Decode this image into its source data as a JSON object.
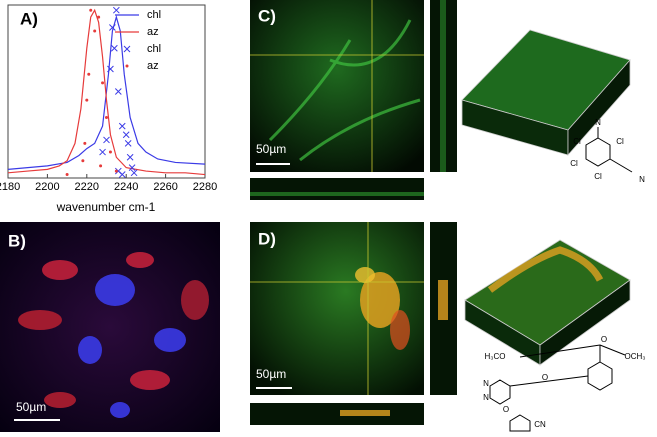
{
  "chart_data": {
    "type": "line",
    "xlabel": "wavenumber cm-1",
    "xlim": [
      2180,
      2280
    ],
    "xticks": [
      2180,
      2200,
      2220,
      2240,
      2260,
      2280
    ],
    "ylim": [
      0,
      1
    ],
    "legend": "upper right",
    "series": [
      {
        "name": "chl",
        "style": "line",
        "color": "#3b3be6",
        "x": [
          2180,
          2200,
          2210,
          2216,
          2220,
          2224,
          2228,
          2231,
          2233,
          2235,
          2237,
          2239,
          2242,
          2246,
          2250,
          2256,
          2265,
          2280
        ],
        "values": [
          0.05,
          0.07,
          0.09,
          0.13,
          0.17,
          0.2,
          0.3,
          0.6,
          0.85,
          0.93,
          0.85,
          0.6,
          0.35,
          0.2,
          0.15,
          0.11,
          0.09,
          0.08
        ]
      },
      {
        "name": "az",
        "style": "line",
        "color": "#e63b3b",
        "x": [
          2180,
          2190,
          2200,
          2206,
          2210,
          2214,
          2217,
          2220,
          2222,
          2224,
          2226,
          2228,
          2230,
          2232,
          2235,
          2240,
          2250,
          2260,
          2270,
          2280
        ],
        "values": [
          0.03,
          0.04,
          0.05,
          0.07,
          0.1,
          0.2,
          0.4,
          0.75,
          0.93,
          0.97,
          0.9,
          0.7,
          0.45,
          0.25,
          0.12,
          0.06,
          0.04,
          0.03,
          0.03,
          0.02
        ]
      },
      {
        "name": "chl",
        "style": "cross",
        "color": "#3b3be6",
        "x": [
          2235,
          2233,
          2234,
          2232,
          2236,
          2238,
          2240,
          2241,
          2230,
          2228,
          2242,
          2243,
          2244,
          2236,
          2238
        ],
        "values": [
          0.97,
          0.87,
          0.75,
          0.63,
          0.5,
          0.3,
          0.25,
          0.2,
          0.22,
          0.15,
          0.12,
          0.06,
          0.03,
          0.04,
          0.02
        ]
      },
      {
        "name": "az",
        "style": "dot",
        "color": "#e63b3b",
        "x": [
          2222,
          2226,
          2224,
          2221,
          2228,
          2220,
          2230,
          2219,
          2232,
          2218,
          2227,
          2235,
          2210
        ],
        "values": [
          0.97,
          0.93,
          0.85,
          0.6,
          0.55,
          0.45,
          0.35,
          0.2,
          0.15,
          0.1,
          0.07,
          0.04,
          0.02
        ]
      }
    ]
  },
  "panels": {
    "a": "A)",
    "b": "B)",
    "c": "C)",
    "d": "D)"
  },
  "scale_bars": [
    "50µm",
    "50µm",
    "50µm"
  ],
  "structures": {
    "chlorothalonil": [
      "N",
      "Cl",
      "Cl",
      "Cl",
      "Cl",
      "N"
    ],
    "azoxystrobin": [
      "H₃CO",
      "O",
      "OCH₃",
      "N",
      "N",
      "O",
      "O",
      "CN"
    ]
  }
}
